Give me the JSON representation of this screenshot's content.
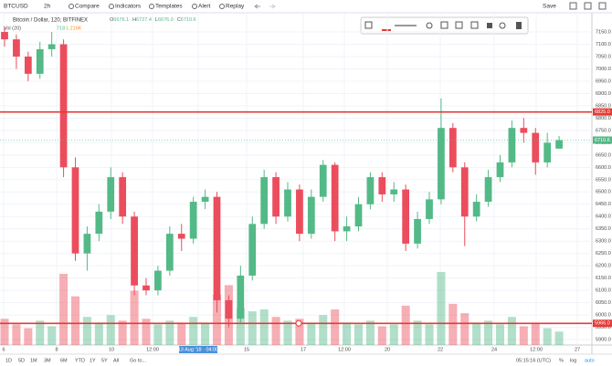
{
  "header": {
    "symbol": "BTCUSD",
    "interval": "2h",
    "buttons": [
      "Compare",
      "Indicators",
      "Templates",
      "Alert",
      "Replay"
    ],
    "save": "Save"
  },
  "legend": {
    "title": "Bitcoin / Dollar, 120, BITFINEX",
    "ohlc": [
      {
        "label": "O",
        "value": "6676.1"
      },
      {
        "label": "H",
        "value": "6727.4"
      },
      {
        "label": "L",
        "value": "6676.0"
      },
      {
        "label": "C",
        "value": "6710.6"
      }
    ],
    "volume": {
      "name": "Vol (20)",
      "value": "718",
      "average": "1.216K"
    }
  },
  "chart_data": {
    "type": "candlestick",
    "up_color": "#53b987",
    "down_color": "#eb4d5c",
    "open": [
      7150,
      7120,
      7050,
      6980,
      7080,
      7100,
      6600,
      6250,
      6330,
      6420,
      6560,
      6400,
      6120,
      6100,
      6180,
      6330,
      6310,
      6460,
      6480,
      6060,
      5985,
      6160,
      6370,
      6560,
      6400,
      6510,
      6330,
      6480,
      6610,
      6340,
      6360,
      6450,
      6560,
      6490,
      6510,
      6290,
      6390,
      6470,
      6760,
      6600,
      6400,
      6460,
      6560,
      6620,
      6760,
      6740,
      6620,
      6676.1
    ],
    "high": [
      7170,
      7140,
      7070,
      7110,
      7150,
      7120,
      6640,
      6360,
      6450,
      6600,
      6580,
      6420,
      6150,
      6200,
      6360,
      6370,
      6480,
      6510,
      6500,
      6080,
      6200,
      6400,
      6590,
      6580,
      6540,
      6530,
      6510,
      6630,
      6620,
      6400,
      6480,
      6580,
      6580,
      6540,
      6530,
      6420,
      6500,
      6880,
      6780,
      6620,
      6490,
      6590,
      6650,
      6790,
      6800,
      6760,
      6740,
      6727.4
    ],
    "low": [
      7090,
      7000,
      6950,
      6960,
      7050,
      6560,
      6220,
      6180,
      6300,
      6390,
      6370,
      6080,
      6080,
      6080,
      6160,
      6260,
      6290,
      6430,
      6010,
      5950,
      5970,
      6140,
      6350,
      6370,
      6380,
      6300,
      6310,
      6460,
      6300,
      6300,
      6340,
      6430,
      6460,
      6460,
      6260,
      6270,
      6370,
      6450,
      6580,
      6280,
      6380,
      6440,
      6540,
      6600,
      6700,
      6570,
      6600,
      6676
    ],
    "close": [
      7120,
      7050,
      6980,
      7080,
      7100,
      6600,
      6250,
      6330,
      6420,
      6560,
      6400,
      6120,
      6100,
      6180,
      6330,
      6310,
      6460,
      6480,
      6060,
      5985,
      6160,
      6370,
      6560,
      6400,
      6510,
      6330,
      6480,
      6610,
      6340,
      6360,
      6450,
      6560,
      6490,
      6510,
      6290,
      6390,
      6470,
      6760,
      6600,
      6400,
      6460,
      6560,
      6620,
      6760,
      6740,
      6620,
      6700,
      6710.6
    ],
    "volume": [
      1400,
      1100,
      900,
      1300,
      1000,
      3800,
      2600,
      1500,
      1200,
      1600,
      1300,
      2900,
      1400,
      1100,
      1300,
      1200,
      1500,
      1200,
      2700,
      3200,
      2000,
      1800,
      1900,
      1500,
      1300,
      1400,
      1200,
      1600,
      1900,
      1200,
      1100,
      1300,
      1000,
      1100,
      2100,
      1300,
      1100,
      3900,
      2200,
      1700,
      1200,
      1300,
      1100,
      1500,
      1000,
      1200,
      900,
      718
    ],
    "ylim": [
      5878,
      7228
    ],
    "yticks": [
      {
        "value": 5900,
        "label": "5900.0"
      },
      {
        "value": 5950,
        "label": "5950.0"
      },
      {
        "value": 6000,
        "label": "6000.0"
      },
      {
        "value": 6050,
        "label": "6050.0"
      },
      {
        "value": 6100,
        "label": "6100.0"
      },
      {
        "value": 6150,
        "label": "6150.0"
      },
      {
        "value": 6200,
        "label": "6200.0"
      },
      {
        "value": 6250,
        "label": "6250.0"
      },
      {
        "value": 6300,
        "label": "6300.0"
      },
      {
        "value": 6350,
        "label": "6350.0"
      },
      {
        "value": 6400,
        "label": "6400.0"
      },
      {
        "value": 6450,
        "label": "6450.0"
      },
      {
        "value": 6500,
        "label": "6500.0"
      },
      {
        "value": 6550,
        "label": "6550.0"
      },
      {
        "value": 6600,
        "label": "6600.0"
      },
      {
        "value": 6650,
        "label": "6650.0"
      },
      {
        "value": 6700,
        "label": "6700.0"
      },
      {
        "value": 6750,
        "label": "6750.0"
      },
      {
        "value": 6800,
        "label": "6800.0"
      },
      {
        "value": 6850,
        "label": "6850.0"
      },
      {
        "value": 6900,
        "label": "6900.0"
      },
      {
        "value": 6950,
        "label": "6950.0"
      },
      {
        "value": 7000,
        "label": "7000.0"
      },
      {
        "value": 7050,
        "label": "7050.0"
      },
      {
        "value": 7100,
        "label": "7100.0"
      },
      {
        "value": 7150,
        "label": "7150.0"
      }
    ],
    "x_labels": [
      "6",
      "8",
      "10",
      "12:00",
      "13 Aug '18 · 04:00",
      "15",
      "17",
      "12:00",
      "20",
      "22",
      "24",
      "12:00",
      "27"
    ],
    "horizontal_lines": [
      {
        "value": 6825,
        "label": "6825.0",
        "color": "#e53935"
      },
      {
        "value": 5966,
        "label": "5966.0",
        "color": "#e53935"
      }
    ],
    "last_price": {
      "value": 6710.6,
      "label": "6710.6",
      "color": "#53b987"
    },
    "grid": true
  },
  "footer": {
    "ranges": [
      "1D",
      "5D",
      "1M",
      "3M",
      "6M",
      "YTD",
      "1Y",
      "5Y",
      "All"
    ],
    "goto": "Go to...",
    "clock": "05:15:16 (UTC)",
    "options": [
      "%",
      "log",
      "auto"
    ]
  }
}
